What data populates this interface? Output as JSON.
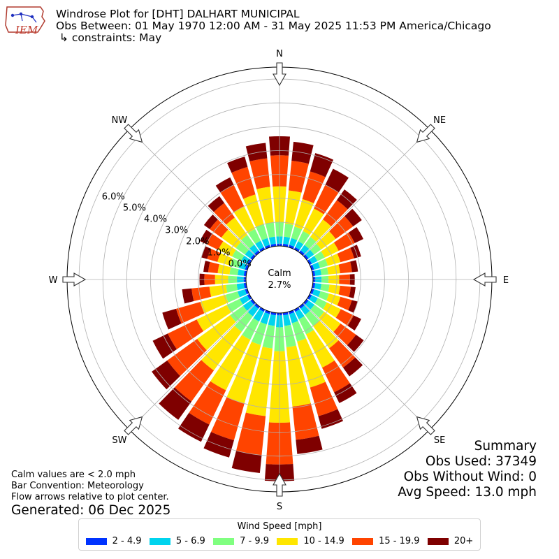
{
  "header": {
    "line1": "Windrose Plot for [DHT] DALHART MUNICIPAL",
    "line2": "Obs Between: 01 May 1970 12:00 AM - 31 May 2025 11:53 PM America/Chicago",
    "line3": " ↳ constraints: May"
  },
  "logo": {
    "text": "IEM"
  },
  "summary": {
    "title": "Summary",
    "obs_used": "Obs Used: 37349",
    "obs_without_wind": "Obs Without Wind: 0",
    "avg_speed": "Avg Speed: 13.0 mph"
  },
  "notes": {
    "line1": "Calm values are < 2.0 mph",
    "line2": "Bar Convention: Meteorology",
    "line3": "Flow arrows relative to plot center.",
    "generated": "Generated: 06 Dec 2025"
  },
  "chart_data": {
    "type": "windrose",
    "calm_label": "Calm",
    "calm_value": "2.7%",
    "radial_tick_labels": [
      "0.0%",
      "1.0%",
      "2.0%",
      "3.0%",
      "4.0%",
      "5.0%",
      "6.0%"
    ],
    "radial_max_percent": 7.5,
    "compass_labels": [
      "N",
      "NE",
      "E",
      "SE",
      "S",
      "SW",
      "W",
      "NW"
    ],
    "legend_title": "Wind Speed [mph]",
    "bins": [
      {
        "label": "2 - 4.9",
        "color": "#0033ff"
      },
      {
        "label": "5 - 6.9",
        "color": "#00d4ee"
      },
      {
        "label": "7 - 9.9",
        "color": "#80ff80"
      },
      {
        "label": "10 - 14.9",
        "color": "#ffe600"
      },
      {
        "label": "15 - 19.9",
        "color": "#ff4400"
      },
      {
        "label": "20+",
        "color": "#7f0000"
      }
    ],
    "directions_deg": [
      0,
      10,
      20,
      30,
      40,
      50,
      60,
      70,
      80,
      90,
      100,
      110,
      120,
      130,
      140,
      150,
      160,
      170,
      180,
      190,
      200,
      210,
      220,
      230,
      240,
      250,
      260,
      270,
      280,
      290,
      300,
      310,
      320,
      330,
      340,
      350
    ],
    "cumulative_percent": [
      [
        0.1,
        0.4,
        1.0,
        2.5,
        3.8,
        4.6
      ],
      [
        0.1,
        0.4,
        0.95,
        2.35,
        3.6,
        4.4
      ],
      [
        0.1,
        0.4,
        0.9,
        2.1,
        3.3,
        4.1
      ],
      [
        0.1,
        0.38,
        0.85,
        1.9,
        3.0,
        3.75
      ],
      [
        0.1,
        0.38,
        0.8,
        1.7,
        2.7,
        3.25
      ],
      [
        0.1,
        0.38,
        0.75,
        1.5,
        2.4,
        2.85
      ],
      [
        0.1,
        0.36,
        0.7,
        1.35,
        2.1,
        2.5
      ],
      [
        0.1,
        0.36,
        0.7,
        1.25,
        1.85,
        2.15
      ],
      [
        0.1,
        0.36,
        0.65,
        1.15,
        1.65,
        1.9
      ],
      [
        0.1,
        0.36,
        0.65,
        1.1,
        1.55,
        1.75
      ],
      [
        0.1,
        0.36,
        0.7,
        1.15,
        1.6,
        1.8
      ],
      [
        0.1,
        0.38,
        0.75,
        1.25,
        1.75,
        2.0
      ],
      [
        0.1,
        0.38,
        0.8,
        1.45,
        2.05,
        2.4
      ],
      [
        0.1,
        0.4,
        0.9,
        1.75,
        2.55,
        2.95
      ],
      [
        0.1,
        0.42,
        1.0,
        2.15,
        3.15,
        3.6
      ],
      [
        0.1,
        0.45,
        1.15,
        2.7,
        3.85,
        4.35
      ],
      [
        0.1,
        0.5,
        1.3,
        3.3,
        4.55,
        5.1
      ],
      [
        0.1,
        0.55,
        1.45,
        3.95,
        5.35,
        5.95
      ],
      [
        0.1,
        0.6,
        1.6,
        4.6,
        6.35,
        7.05
      ],
      [
        0.1,
        0.55,
        1.5,
        4.35,
        6.0,
        6.75
      ],
      [
        0.1,
        0.55,
        1.45,
        4.0,
        5.6,
        6.35
      ],
      [
        0.1,
        0.55,
        1.4,
        3.75,
        5.35,
        6.15
      ],
      [
        0.1,
        0.5,
        1.3,
        3.3,
        4.9,
        5.85
      ],
      [
        0.1,
        0.48,
        1.15,
        2.85,
        4.4,
        5.2
      ],
      [
        0.1,
        0.45,
        1.05,
        2.45,
        3.8,
        4.5
      ],
      [
        0.1,
        0.42,
        0.95,
        2.05,
        3.1,
        3.7
      ],
      [
        0.1,
        0.4,
        0.85,
        1.55,
        2.3,
        2.7
      ],
      [
        0.1,
        0.38,
        0.75,
        1.3,
        1.75,
        1.95
      ],
      [
        0.1,
        0.36,
        0.7,
        1.2,
        1.6,
        1.8
      ],
      [
        0.1,
        0.38,
        0.75,
        1.3,
        1.75,
        2.0
      ],
      [
        0.1,
        0.38,
        0.8,
        1.45,
        2.0,
        2.3
      ],
      [
        0.1,
        0.38,
        0.85,
        1.6,
        2.2,
        2.5
      ],
      [
        0.1,
        0.4,
        0.9,
        1.8,
        2.55,
        2.9
      ],
      [
        0.1,
        0.4,
        0.95,
        2.0,
        3.0,
        3.35
      ],
      [
        0.1,
        0.4,
        1.0,
        2.3,
        3.5,
        3.95
      ],
      [
        0.1,
        0.4,
        1.0,
        2.5,
        3.7,
        4.35
      ]
    ]
  }
}
